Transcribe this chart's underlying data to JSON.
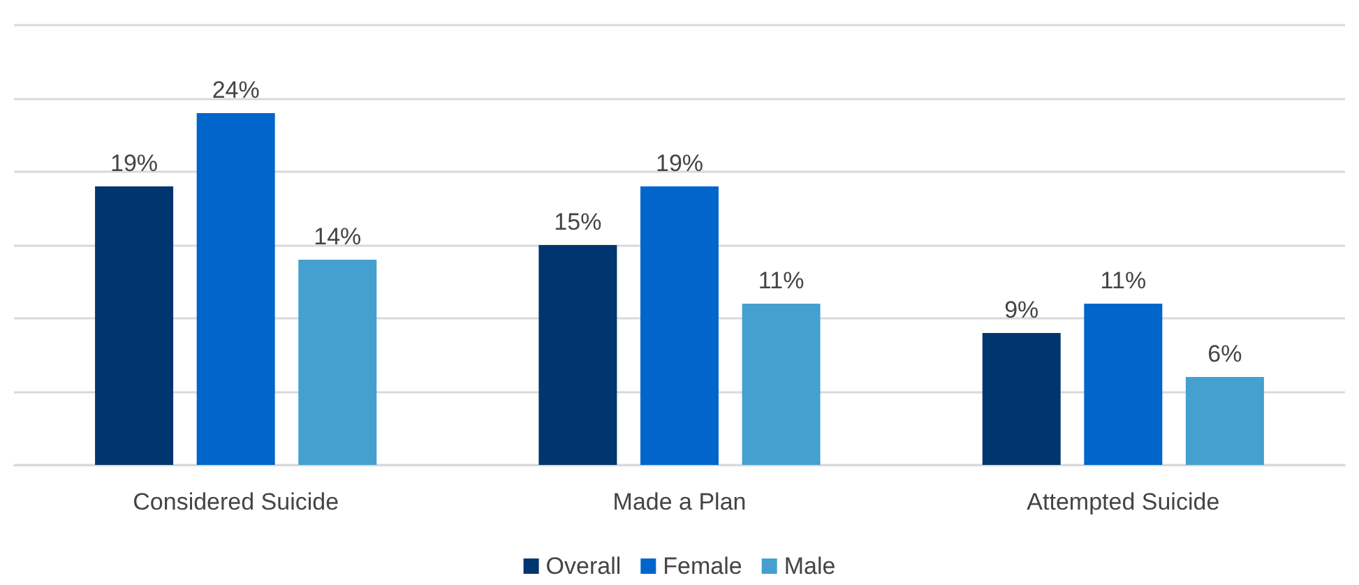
{
  "chart_data": {
    "type": "bar",
    "categories": [
      "Considered Suicide",
      "Made a Plan",
      "Attempted Suicide"
    ],
    "series": [
      {
        "name": "Overall",
        "color": "#003670",
        "values": [
          19,
          15,
          9
        ],
        "value_labels": [
          "19%",
          "15%",
          "9%"
        ]
      },
      {
        "name": "Female",
        "color": "#0066cc",
        "values": [
          24,
          19,
          11
        ],
        "value_labels": [
          "24%",
          "19%",
          "11%"
        ]
      },
      {
        "name": "Male",
        "color": "#45a0cf",
        "values": [
          14,
          11,
          6
        ],
        "value_labels": [
          "14%",
          "11%",
          "6%"
        ]
      }
    ],
    "ylim": [
      0,
      30
    ],
    "yticks": [
      {
        "value": 0,
        "label": null
      },
      {
        "value": 5,
        "label": null
      },
      {
        "value": 10,
        "label": null
      },
      {
        "value": 15,
        "label": null
      },
      {
        "value": 20,
        "label": null
      },
      {
        "value": 25,
        "label": null
      },
      {
        "value": 30,
        "label": null
      }
    ],
    "tick_labels": "x",
    "grid": "y",
    "legend": "bottom"
  }
}
